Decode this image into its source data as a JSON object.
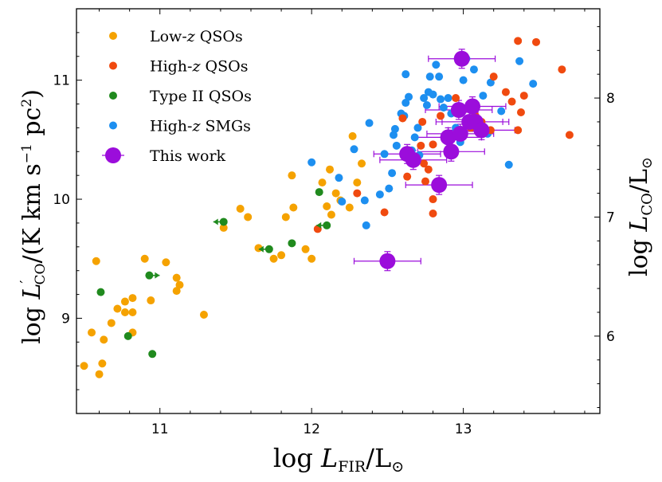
{
  "chart_data": {
    "type": "scatter",
    "title": "",
    "xlabel": "log L_FIR/L_⊙",
    "ylabel": "log L'_CO/(K km s^-1 pc^2)",
    "y2label": "log L_CO/L_⊙",
    "xlim": [
      10.45,
      13.9
    ],
    "ylim": [
      8.2,
      11.6
    ],
    "y2lim": [
      5.35,
      8.75
    ],
    "x_ticks": [
      11,
      12,
      13
    ],
    "y_ticks": [
      9,
      10,
      11
    ],
    "y2_ticks": [
      6,
      7,
      8
    ],
    "legend_position": "top-left",
    "series": [
      {
        "name": "Low-z QSOs",
        "color": "#f5a200",
        "points": [
          [
            10.5,
            8.6
          ],
          [
            10.6,
            8.53
          ],
          [
            10.62,
            8.62
          ],
          [
            10.58,
            9.48
          ],
          [
            10.55,
            8.88
          ],
          [
            10.63,
            8.82
          ],
          [
            10.68,
            8.96
          ],
          [
            10.72,
            9.08
          ],
          [
            10.77,
            9.14
          ],
          [
            10.82,
            9.17
          ],
          [
            10.77,
            9.05
          ],
          [
            10.82,
            9.05
          ],
          [
            10.82,
            8.88
          ],
          [
            10.9,
            9.5
          ],
          [
            10.94,
            9.15
          ],
          [
            11.04,
            9.47
          ],
          [
            11.11,
            9.34
          ],
          [
            11.13,
            9.28
          ],
          [
            11.11,
            9.23
          ],
          [
            11.29,
            9.03
          ],
          [
            11.42,
            9.76
          ],
          [
            11.53,
            9.92
          ],
          [
            11.58,
            9.85
          ],
          [
            11.65,
            9.59
          ],
          [
            11.75,
            9.5
          ],
          [
            11.8,
            9.53
          ],
          [
            11.83,
            9.85
          ],
          [
            11.88,
            9.93
          ],
          [
            11.87,
            10.2
          ],
          [
            11.96,
            9.58
          ],
          [
            12.0,
            9.5
          ],
          [
            12.07,
            10.14
          ],
          [
            12.12,
            10.25
          ],
          [
            12.16,
            10.05
          ],
          [
            12.19,
            9.99
          ],
          [
            12.1,
            9.94
          ],
          [
            12.13,
            9.87
          ],
          [
            12.25,
            9.93
          ],
          [
            12.27,
            10.53
          ],
          [
            12.3,
            10.14
          ],
          [
            12.33,
            10.3
          ]
        ]
      },
      {
        "name": "High-z QSOs",
        "color": "#f04a0f",
        "points": [
          [
            12.04,
            9.75
          ],
          [
            12.3,
            10.05
          ],
          [
            12.48,
            9.89
          ],
          [
            12.6,
            10.68
          ],
          [
            12.63,
            10.19
          ],
          [
            12.73,
            10.65
          ],
          [
            12.72,
            10.45
          ],
          [
            12.8,
            10.46
          ],
          [
            12.74,
            10.3
          ],
          [
            12.77,
            10.25
          ],
          [
            12.75,
            10.15
          ],
          [
            12.8,
            10.0
          ],
          [
            12.8,
            9.88
          ],
          [
            12.85,
            10.7
          ],
          [
            12.9,
            10.55
          ],
          [
            12.95,
            10.85
          ],
          [
            13.0,
            10.75
          ],
          [
            13.05,
            10.6
          ],
          [
            13.08,
            10.7
          ],
          [
            13.12,
            10.65
          ],
          [
            13.18,
            10.58
          ],
          [
            13.2,
            11.03
          ],
          [
            13.28,
            10.9
          ],
          [
            13.32,
            10.82
          ],
          [
            13.36,
            10.58
          ],
          [
            13.38,
            10.73
          ],
          [
            13.4,
            10.87
          ],
          [
            13.36,
            11.33
          ],
          [
            13.48,
            11.32
          ],
          [
            13.65,
            11.09
          ],
          [
            13.7,
            10.54
          ]
        ]
      },
      {
        "name": "Type II QSOs",
        "color": "#208a1e",
        "points": [
          [
            10.61,
            9.22
          ],
          [
            10.79,
            8.85
          ],
          [
            10.95,
            8.7
          ],
          [
            10.93,
            9.36
          ],
          [
            11.42,
            9.81
          ],
          [
            11.72,
            9.58
          ],
          [
            11.87,
            9.63
          ],
          [
            12.05,
            10.06
          ],
          [
            12.1,
            9.78
          ]
        ]
      },
      {
        "name": "High-z SMGs",
        "color": "#1d8ff0",
        "points": [
          [
            12.0,
            10.31
          ],
          [
            12.18,
            10.18
          ],
          [
            12.2,
            9.98
          ],
          [
            12.28,
            10.42
          ],
          [
            12.35,
            9.99
          ],
          [
            12.36,
            9.78
          ],
          [
            12.38,
            10.64
          ],
          [
            12.45,
            10.04
          ],
          [
            12.48,
            10.38
          ],
          [
            12.51,
            10.09
          ],
          [
            12.53,
            10.22
          ],
          [
            12.54,
            10.54
          ],
          [
            12.55,
            10.59
          ],
          [
            12.56,
            10.45
          ],
          [
            12.59,
            10.72
          ],
          [
            12.61,
            10.7
          ],
          [
            12.62,
            10.81
          ],
          [
            12.62,
            11.05
          ],
          [
            12.64,
            10.86
          ],
          [
            12.66,
            10.41
          ],
          [
            12.68,
            10.52
          ],
          [
            12.7,
            10.6
          ],
          [
            12.71,
            10.37
          ],
          [
            12.74,
            10.85
          ],
          [
            12.76,
            10.79
          ],
          [
            12.77,
            10.9
          ],
          [
            12.78,
            11.03
          ],
          [
            12.8,
            10.88
          ],
          [
            12.82,
            11.13
          ],
          [
            12.84,
            11.03
          ],
          [
            12.85,
            10.84
          ],
          [
            12.87,
            10.77
          ],
          [
            12.9,
            10.85
          ],
          [
            12.92,
            10.72
          ],
          [
            12.95,
            10.6
          ],
          [
            12.98,
            10.48
          ],
          [
            13.0,
            11.0
          ],
          [
            13.02,
            11.18
          ],
          [
            13.07,
            11.09
          ],
          [
            13.13,
            10.87
          ],
          [
            13.16,
            10.55
          ],
          [
            13.18,
            10.98
          ],
          [
            13.25,
            10.74
          ],
          [
            13.3,
            10.29
          ],
          [
            13.37,
            11.16
          ],
          [
            13.46,
            10.97
          ]
        ]
      },
      {
        "name": "This work",
        "color": "#9b0ddb",
        "points": [
          [
            12.99,
            11.18
          ],
          [
            12.5,
            9.48
          ],
          [
            12.63,
            10.38
          ],
          [
            12.67,
            10.33
          ],
          [
            12.84,
            10.12
          ],
          [
            12.9,
            10.52
          ],
          [
            12.92,
            10.4
          ],
          [
            12.97,
            10.75
          ],
          [
            12.98,
            10.55
          ],
          [
            13.04,
            10.65
          ],
          [
            13.06,
            10.78
          ],
          [
            13.08,
            10.65
          ],
          [
            13.12,
            10.58
          ]
        ]
      }
    ]
  }
}
